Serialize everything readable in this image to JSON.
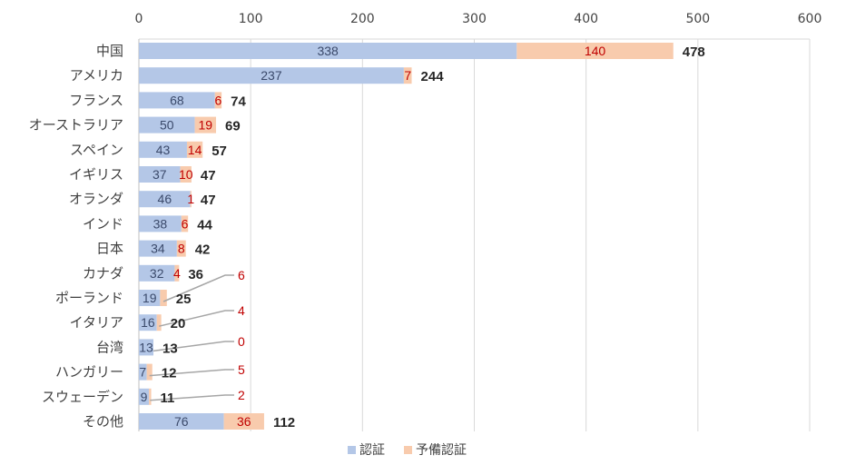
{
  "chart_data": {
    "type": "bar",
    "orientation": "horizontal",
    "stacked": true,
    "categories": [
      "中国",
      "アメリカ",
      "フランス",
      "オーストラリア",
      "スペイン",
      "イギリス",
      "オランダ",
      "インド",
      "日本",
      "カナダ",
      "ポーランド",
      "イタリア",
      "台湾",
      "ハンガリー",
      "スウェーデン",
      "その他"
    ],
    "series": [
      {
        "name": "認証",
        "values": [
          338,
          237,
          68,
          50,
          43,
          37,
          46,
          38,
          34,
          32,
          19,
          16,
          13,
          7,
          9,
          76
        ],
        "color": "#b4c7e7"
      },
      {
        "name": "予備認証",
        "values": [
          140,
          7,
          6,
          19,
          14,
          10,
          1,
          6,
          8,
          4,
          6,
          4,
          0,
          5,
          2,
          36
        ],
        "color": "#f8cbad"
      }
    ],
    "totals": [
      478,
      244,
      74,
      69,
      57,
      47,
      47,
      44,
      42,
      36,
      25,
      20,
      13,
      12,
      11,
      112
    ],
    "xlim": [
      0,
      600
    ],
    "xticks": [
      0,
      100,
      200,
      300,
      400,
      500,
      600
    ],
    "xaxis_position": "top",
    "grid": true,
    "legend": "bottom",
    "data_label_color_1": "#3b4a6b",
    "data_label_color_2": "#c00000"
  }
}
